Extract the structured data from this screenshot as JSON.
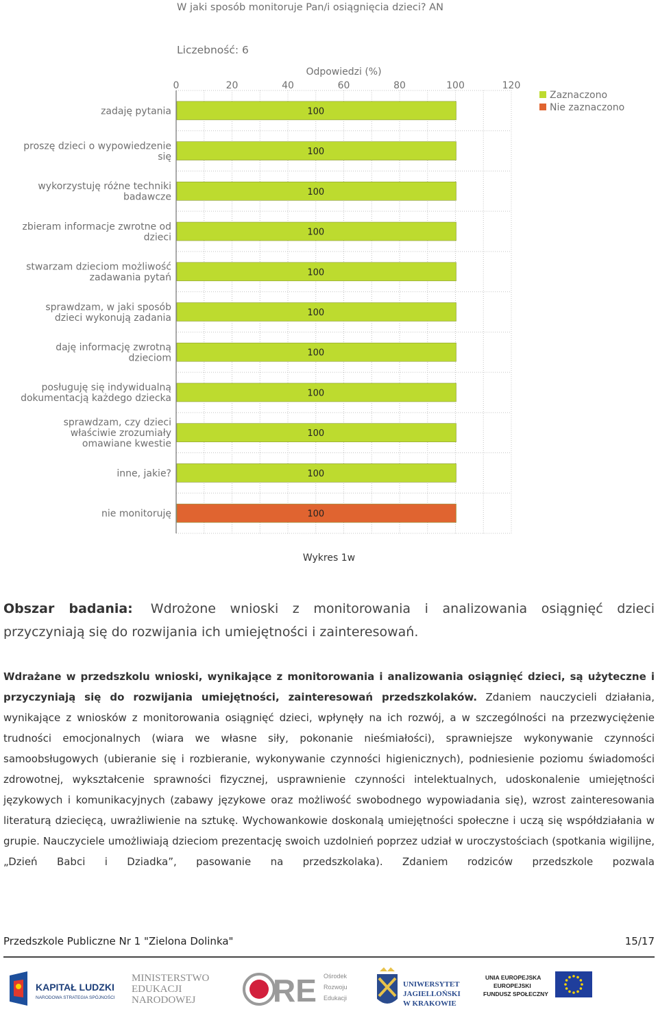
{
  "chart_data": {
    "type": "bar",
    "orientation": "horizontal",
    "title": "W jaki sposób monitoruje Pan/i osiągnięcia dzieci? AN",
    "count_label": "Liczebność: 6",
    "xlabel": "Odpowiedzi (%)",
    "xlim": [
      0,
      120
    ],
    "ticks": [
      0,
      20,
      40,
      60,
      80,
      100,
      120
    ],
    "grid": true,
    "legend_position": "top-right",
    "legend": [
      {
        "name": "Zaznaczono",
        "color": "#BDDB2F"
      },
      {
        "name": "Nie zaznaczono",
        "color": "#E06430"
      }
    ],
    "categories": [
      "zadaję pytania",
      "proszę dzieci o wypowiedzenie się",
      "wykorzystuję różne techniki badawcze",
      "zbieram informacje zwrotne od dzieci",
      "stwarzam dzieciom możliwość zadawania pytań",
      "sprawdzam, w jaki sposób dzieci wykonują zadania",
      "daję informację zwrotną dzieciom",
      "posługuję się indywidualną dokumentacją każdego dziecka",
      "sprawdzam, czy dzieci właściwie zrozumiały omawiane kwestie",
      "inne, jakie?",
      "nie monitoruję"
    ],
    "category_lines": [
      [
        "zadaję pytania"
      ],
      [
        "proszę dzieci o wypowiedzenie",
        "się"
      ],
      [
        "wykorzystuję różne techniki",
        "badawcze"
      ],
      [
        "zbieram informacje zwrotne od",
        "dzieci"
      ],
      [
        "stwarzam dzieciom możliwość",
        "zadawania pytań"
      ],
      [
        "sprawdzam, w jaki sposób",
        "dzieci wykonują zadania"
      ],
      [
        "daję informację zwrotną",
        "dzieciom"
      ],
      [
        "posługuję się indywidualną",
        "dokumentacją każdego dziecka"
      ],
      [
        "sprawdzam, czy dzieci",
        "właściwie zrozumiały",
        "omawiane kwestie"
      ],
      [
        "inne, jakie?"
      ],
      [
        "nie monitoruję"
      ]
    ],
    "values": [
      100,
      100,
      100,
      100,
      100,
      100,
      100,
      100,
      100,
      100,
      100
    ],
    "bar_series": [
      "Zaznaczono",
      "Zaznaczono",
      "Zaznaczono",
      "Zaznaczono",
      "Zaznaczono",
      "Zaznaczono",
      "Zaznaczono",
      "Zaznaczono",
      "Zaznaczono",
      "Zaznaczono",
      "Nie zaznaczono"
    ],
    "data_labels": [
      "100",
      "100",
      "100",
      "100",
      "100",
      "100",
      "100",
      "100",
      "100",
      "100",
      "100"
    ]
  },
  "caption": "Wykres 1w",
  "area": {
    "label": "Obszar badania:",
    "text": "Wdrożone wnioski z monitorowania i analizowania osiągnięć dzieci przyczyniają się do rozwijania ich umiejętności i zainteresowań."
  },
  "paragraph": {
    "bold": "Wdrażane w przedszkolu wnioski, wynikające z monitorowania i analizowania osiągnięć dzieci, są użyteczne i przyczyniają się do rozwijania umiejętności, zainteresowań przedszkolaków.",
    "text": " Zdaniem nauczycieli działania, wynikające z wniosków z monitorowania osiągnięć dzieci, wpłynęły na ich rozwój, a w szczególności na przezwyciężenie trudności emocjonalnych (wiara we własne siły, pokonanie nieśmiałości), sprawniejsze wykonywanie czynności samoobsługowych (ubieranie się i rozbieranie, wykonywanie czynności higienicznych), podniesienie poziomu świadomości zdrowotnej, wykształcenie sprawności fizycznej, usprawnienie czynności intelektualnych, udoskonalenie umiejętności językowych i komunikacyjnych (zabawy językowe oraz możliwość swobodnego wypowiadania się), wzrost zainteresowania literaturą dziecięcą, uwrażliwienie na sztukę. Wychowankowie doskonalą umiejętności społeczne i uczą się współdziałania w grupie. Nauczyciele umożliwiają dzieciom prezentację swoich uzdolnień poprzez udział w uroczystościach (spotkania wigilijne, „Dzień Babci i Dziadka”, pasowanie na przedszkolaka). Zdaniem rodziców przedszkole pozwala"
  },
  "footer": {
    "school": "Przedszkole Publiczne Nr 1 \"Zielona Dolinka\"",
    "page": "15/17"
  },
  "logos": {
    "kl_title": "KAPITAŁ LUDZKI",
    "kl_sub": "NARODOWA STRATEGIA SPÓJNOŚCI",
    "men": [
      "MINISTERSTWO",
      "EDUKACJI",
      "NARODOWEJ"
    ],
    "ore_word": "ORE",
    "ore_sub": [
      "Ośrodek",
      "Rozwoju",
      "Edukacji"
    ],
    "uj": [
      "UNIWERSYTET",
      "JAGIELLOŃSKI",
      "W KRAKOWIE"
    ],
    "eu": [
      "UNIA EUROPEJSKA",
      "EUROPEJSKI",
      "FUNDUSZ SPOŁECZNY"
    ]
  }
}
